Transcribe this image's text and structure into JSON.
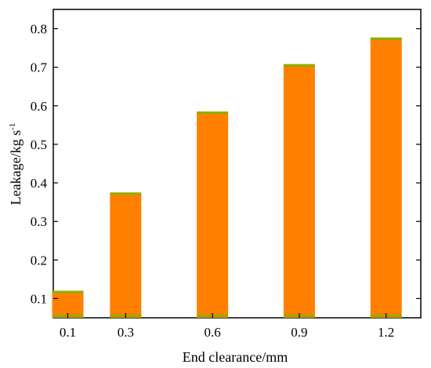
{
  "chart_data": {
    "type": "bar",
    "categories": [
      "0.1",
      "0.3",
      "0.6",
      "0.9",
      "1.2"
    ],
    "values": [
      0.12,
      0.375,
      0.585,
      0.708,
      0.777
    ],
    "xlabel": "End clearance/mm",
    "ylabel_main": "Leakage/kg",
    "ylabel_unit": "s",
    "ylabel_sup": "-1",
    "ylim": [
      0.05,
      0.85
    ],
    "yticks": [
      "0.1",
      "0.2",
      "0.3",
      "0.4",
      "0.5",
      "0.6",
      "0.7",
      "0.8"
    ],
    "grid": false,
    "legend": "none",
    "bar_color": "#ff8000",
    "bar_base_color": "#8db000"
  }
}
